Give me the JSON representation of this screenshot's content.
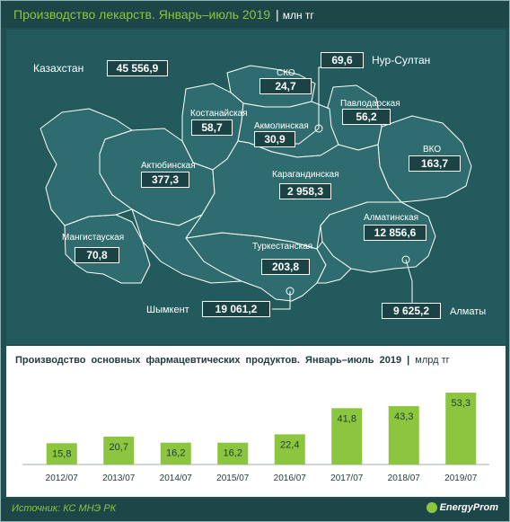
{
  "header": {
    "title": "Производство лекарств. Январь–июль 2019",
    "unit": "млн тг"
  },
  "map": {
    "country_label": "Казахстан",
    "country_value": "45 556,9",
    "regions": [
      {
        "id": "sko",
        "name": "СКО",
        "value": "24,7"
      },
      {
        "id": "pavlodar",
        "name": "Павлодарская",
        "value": "56,2"
      },
      {
        "id": "kostanay",
        "name": "Костанайская",
        "value": "58,7"
      },
      {
        "id": "akmola",
        "name": "Акмолинская",
        "value": "30,9"
      },
      {
        "id": "vko",
        "name": "ВКО",
        "value": "163,7"
      },
      {
        "id": "aktobe",
        "name": "Актюбинская",
        "value": "377,3"
      },
      {
        "id": "karaganda",
        "name": "Карагандинская",
        "value": "2 958,3"
      },
      {
        "id": "almaty-region",
        "name": "Алматинская",
        "value": "12 856,6"
      },
      {
        "id": "mangystau",
        "name": "Мангистауская",
        "value": "70,8"
      },
      {
        "id": "turkestan",
        "name": "Туркестанская",
        "value": "203,8"
      }
    ],
    "cities": [
      {
        "id": "nur-sultan",
        "name": "Нур-Султан",
        "value": "69,6"
      },
      {
        "id": "shymkent",
        "name": "Шымкент",
        "value": "19 061,2"
      },
      {
        "id": "almaty",
        "name": "Алматы",
        "value": "9 625,2"
      }
    ],
    "colors": {
      "land": "#2e6c6f",
      "border": "#ffffff",
      "accent": "#8cc63f"
    }
  },
  "bar_section": {
    "title": "Производство основных фармацевтических продуктов. Январь–июль 2019",
    "unit": "млрд тг"
  },
  "chart_data": {
    "type": "bar",
    "title": "Производство основных фармацевтических продуктов. Январь–июль 2019",
    "ylabel": "млрд тг",
    "categories": [
      "2012/07",
      "2013/07",
      "2014/07",
      "2015/07",
      "2016/07",
      "2017/07",
      "2018/07",
      "2019/07"
    ],
    "values": [
      15.8,
      20.7,
      16.2,
      16.2,
      22.4,
      41.8,
      43.3,
      53.3
    ],
    "value_labels": [
      "15,8",
      "20,7",
      "16,2",
      "16,2",
      "22,4",
      "41,8",
      "43,3",
      "53,3"
    ],
    "ylim": [
      0,
      60
    ],
    "grid": false,
    "colors": {
      "bar": "#8cc63f",
      "bar_edge": "#ffffff"
    }
  },
  "footer": {
    "source": "Источник: КС МНЭ РК",
    "logo_text": "EnergyProm"
  }
}
